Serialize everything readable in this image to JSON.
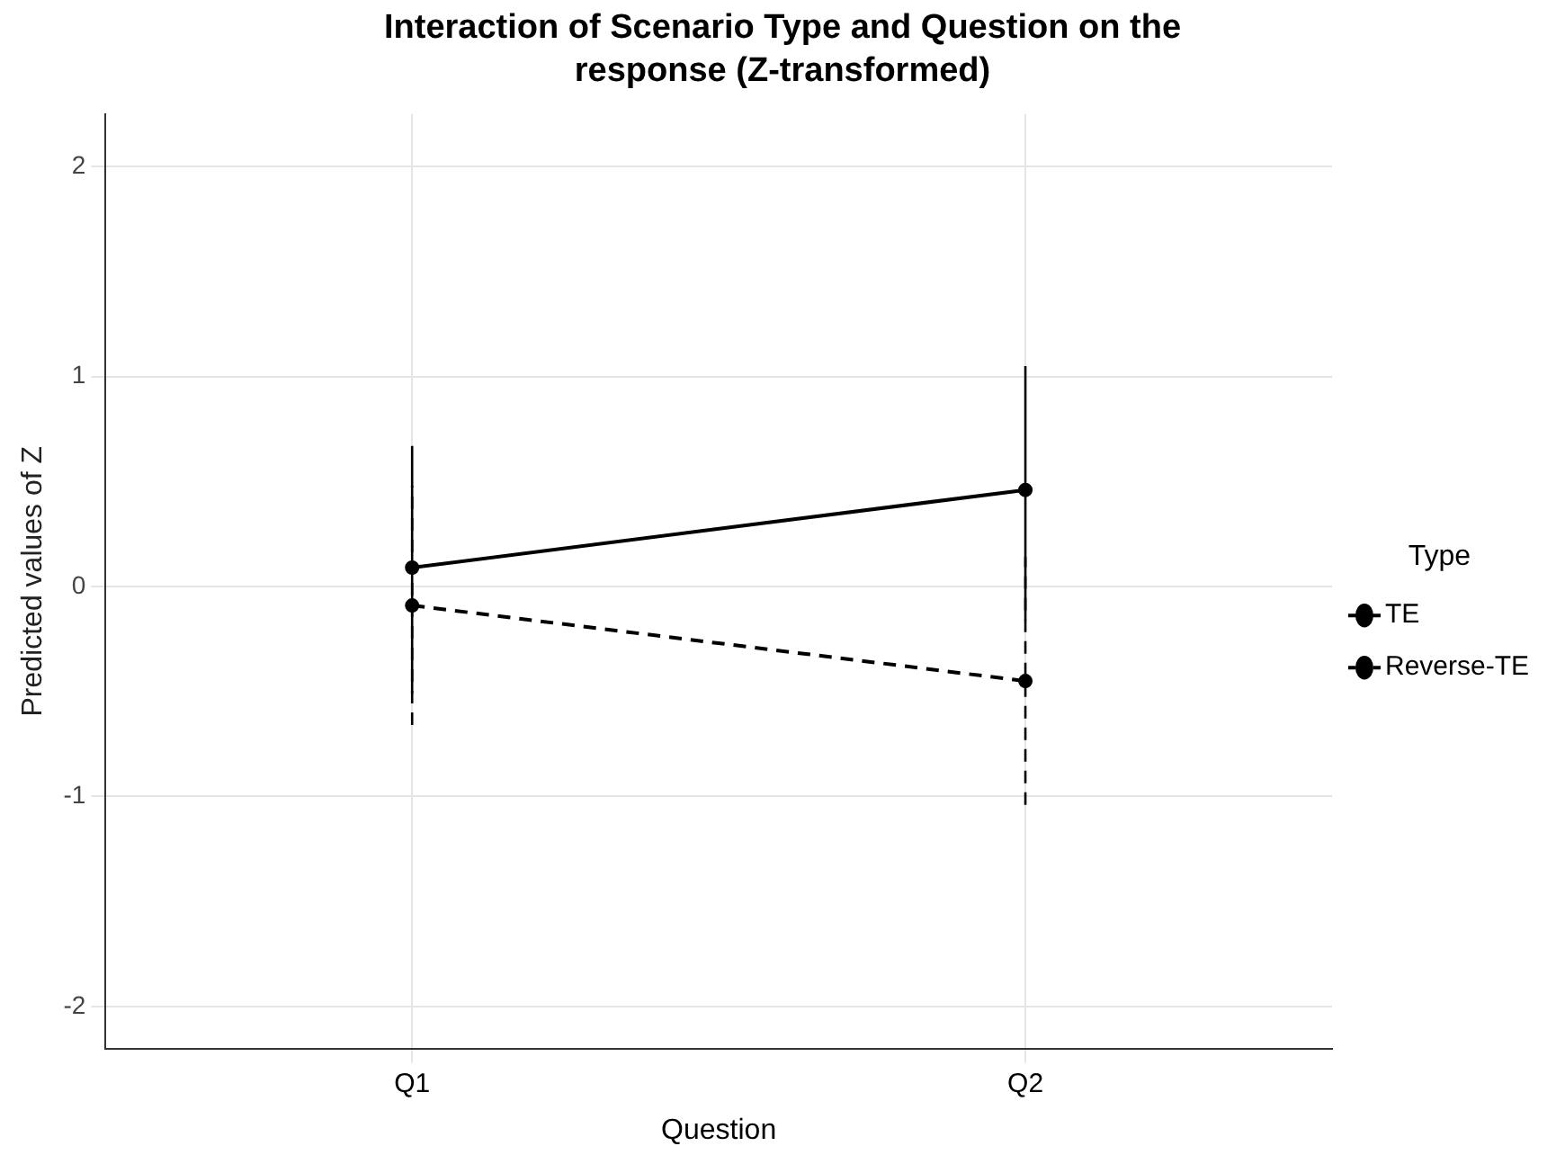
{
  "chart_data": {
    "type": "line",
    "title": "Interaction of Scenario Type and Question on the response (Z-transformed)",
    "xlabel": "Question",
    "ylabel": "Predicted values of Z",
    "legend_title": "Type",
    "categories": [
      "Q1",
      "Q2"
    ],
    "series": [
      {
        "name": "TE",
        "color": "#000000",
        "values": [
          0.09,
          0.46
        ],
        "errors": [
          [
            -0.51,
            0.67
          ],
          [
            -0.16,
            1.05
          ]
        ],
        "line_style": "solid"
      },
      {
        "name": "Reverse-TE",
        "color": "#000000",
        "values": [
          -0.09,
          -0.45
        ],
        "errors": [
          [
            -0.66,
            0.48
          ],
          [
            -1.04,
            0.14
          ]
        ],
        "line_style": "dashed"
      }
    ],
    "ylim": [
      -2.2,
      2.25
    ],
    "yticks": [
      -2,
      -1,
      0,
      1,
      2
    ],
    "grid": true,
    "legend": "right",
    "marker": "circle"
  }
}
